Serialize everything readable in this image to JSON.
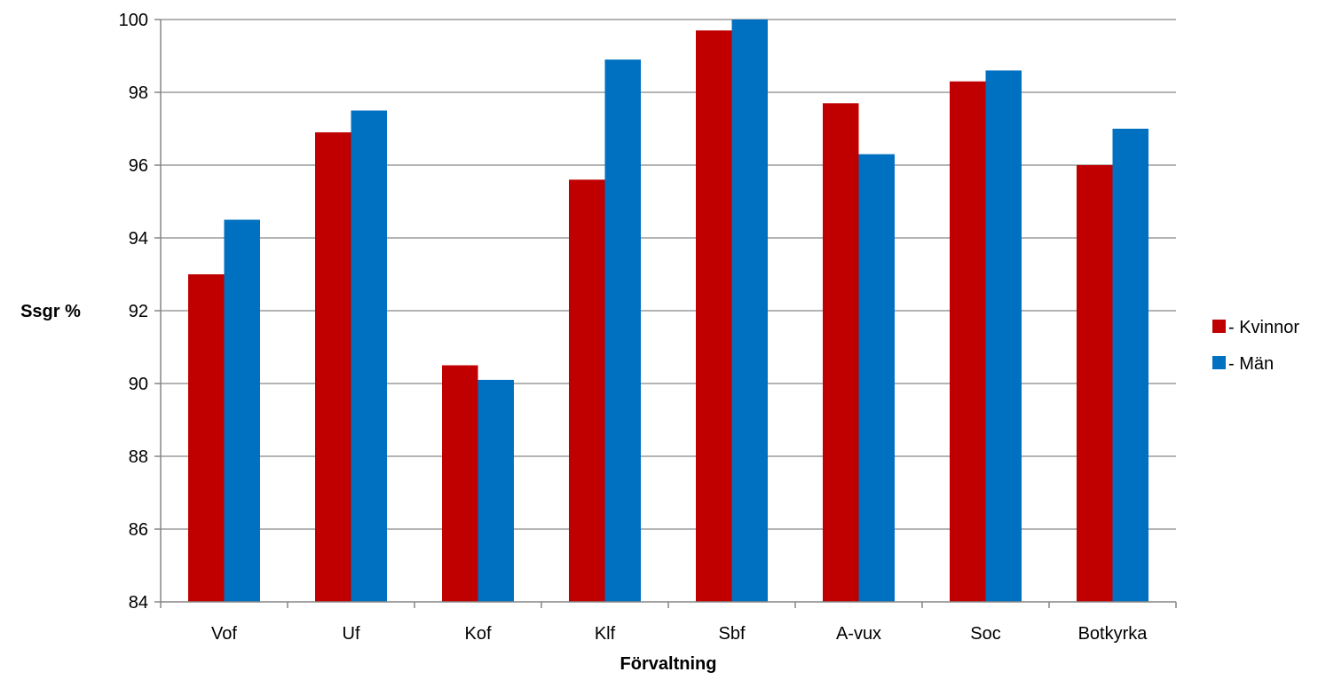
{
  "chart_data": {
    "type": "bar",
    "title": "",
    "xlabel": "Förvaltning",
    "ylabel": "Ssgr %",
    "categories": [
      "Vof",
      "Uf",
      "Kof",
      "Klf",
      "Sbf",
      "A-vux",
      "Soc",
      "Botkyrka"
    ],
    "series": [
      {
        "name": "- Kvinnor",
        "color": "#C00000",
        "values": [
          93.0,
          96.9,
          90.5,
          95.6,
          99.7,
          97.7,
          98.3,
          96.0
        ]
      },
      {
        "name": "- Män",
        "color": "#0070C0",
        "values": [
          94.5,
          97.5,
          90.1,
          98.9,
          100.0,
          96.3,
          98.6,
          97.0
        ]
      }
    ],
    "ylim": [
      84,
      100
    ],
    "yticks": [
      84,
      86,
      88,
      90,
      92,
      94,
      96,
      98,
      100
    ],
    "grid": true,
    "legend_position": "right"
  }
}
